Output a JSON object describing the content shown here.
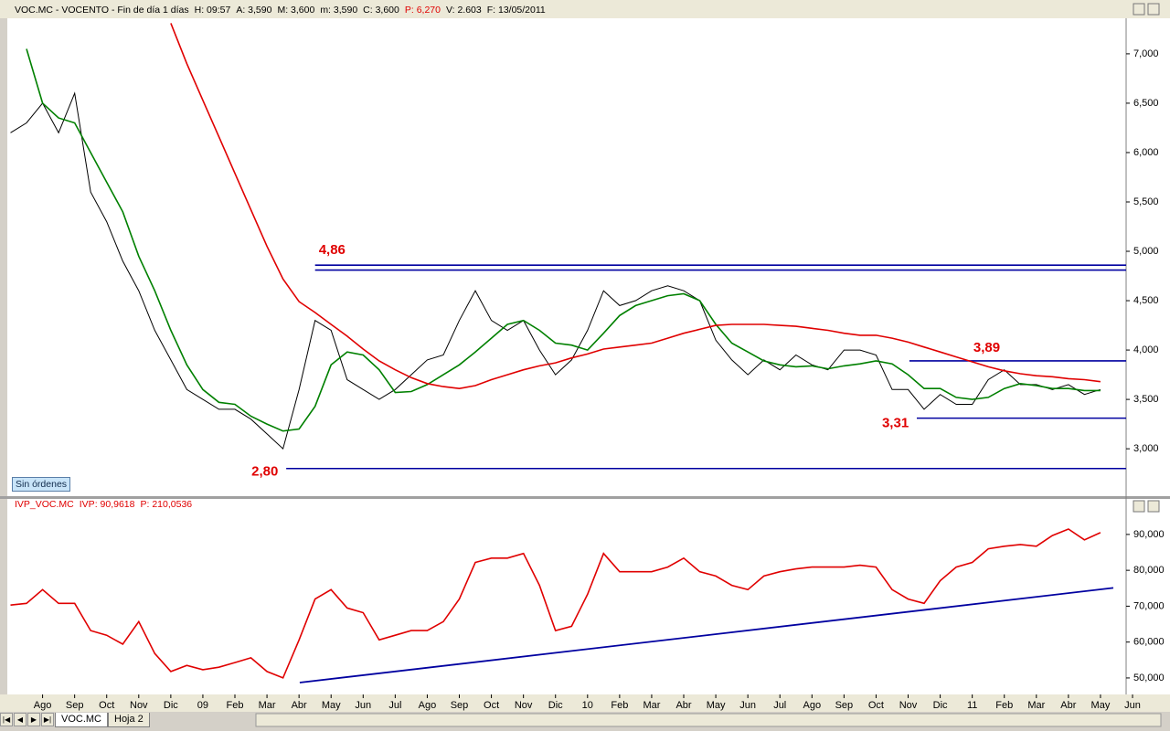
{
  "window": {
    "button": "Sin órdenes",
    "tabs": [
      "VOC.MC",
      "Hoja 2"
    ]
  },
  "chart_data": [
    {
      "type": "line",
      "header": [
        {
          "text": "VOC.MC - VOCENTO - Fin de día 1 días",
          "color": "#000000"
        },
        {
          "text": "H: 09:57",
          "color": "#000000"
        },
        {
          "text": "A: 3,590",
          "color": "#000000"
        },
        {
          "text": "M: 3,600",
          "color": "#000000"
        },
        {
          "text": "m: 3,590",
          "color": "#000000"
        },
        {
          "text": "C: 3,600",
          "color": "#000000"
        },
        {
          "text": "P: 6,270",
          "color": "#e00000"
        },
        {
          "text": "V: 2.603",
          "color": "#000000"
        },
        {
          "text": "F: 13/05/2011",
          "color": "#000000"
        }
      ],
      "x": [
        -1,
        -0.5,
        0,
        0.5,
        1,
        1.5,
        2,
        2.5,
        3,
        3.5,
        4,
        4.5,
        5,
        5.5,
        6,
        6.5,
        7,
        7.5,
        8,
        8.5,
        9,
        9.5,
        10,
        10.5,
        11,
        11.5,
        12,
        12.5,
        13,
        13.5,
        14,
        14.5,
        15,
        15.5,
        16,
        16.5,
        17,
        17.5,
        18,
        18.5,
        19,
        19.5,
        20,
        20.5,
        21,
        21.5,
        22,
        22.5,
        23,
        23.5,
        24,
        24.5,
        25,
        25.5,
        26,
        26.5,
        27,
        27.5,
        28,
        28.5,
        29,
        29.5,
        30,
        30.5,
        31,
        31.5,
        32,
        32.5,
        33
      ],
      "xlim": [
        -1.1,
        33.8
      ],
      "ylim": [
        2.52,
        7.36
      ],
      "yticks": [
        {
          "value": 3,
          "label": "3,000"
        },
        {
          "value": 3.5,
          "label": "3,500"
        },
        {
          "value": 4,
          "label": "4,000"
        },
        {
          "value": 4.5,
          "label": "4,500"
        },
        {
          "value": 5,
          "label": "5,000"
        },
        {
          "value": 5.5,
          "label": "5,500"
        },
        {
          "value": 6,
          "label": "6,000"
        },
        {
          "value": 6.5,
          "label": "6,500"
        },
        {
          "value": 7,
          "label": "7,000"
        }
      ],
      "series": [
        {
          "color": "#000000",
          "values": [
            6.2,
            6.3,
            6.5,
            6.2,
            6.6,
            5.6,
            5.3,
            4.9,
            4.6,
            4.2,
            3.9,
            3.6,
            3.5,
            3.4,
            3.4,
            3.3,
            3.15,
            3.0,
            3.6,
            4.3,
            4.2,
            3.7,
            3.6,
            3.5,
            3.6,
            3.75,
            3.9,
            3.95,
            4.3,
            4.6,
            4.3,
            4.2,
            4.3,
            4.0,
            3.75,
            3.9,
            4.2,
            4.6,
            4.45,
            4.5,
            4.6,
            4.65,
            4.6,
            4.5,
            4.1,
            3.9,
            3.75,
            3.9,
            3.8,
            3.95,
            3.85,
            3.8,
            4.0,
            4.0,
            3.95,
            3.6,
            3.6,
            3.4,
            3.55,
            3.45,
            3.45,
            3.7,
            3.8,
            3.65,
            3.65,
            3.6,
            3.65,
            3.55,
            3.6
          ]
        },
        {
          "color": "#008000",
          "values": [
            null,
            7.05,
            6.5,
            6.35,
            6.3,
            6.0,
            5.7,
            5.4,
            4.95,
            4.6,
            4.2,
            3.85,
            3.6,
            3.47,
            3.45,
            3.33,
            3.25,
            3.18,
            3.2,
            3.43,
            3.85,
            3.98,
            3.95,
            3.8,
            3.57,
            3.58,
            3.65,
            3.75,
            3.85,
            3.98,
            4.12,
            4.26,
            4.3,
            4.2,
            4.07,
            4.05,
            4.0,
            4.17,
            4.35,
            4.45,
            4.5,
            4.55,
            4.57,
            4.5,
            4.26,
            4.07,
            3.98,
            3.89,
            3.85,
            3.83,
            3.84,
            3.81,
            3.84,
            3.86,
            3.89,
            3.86,
            3.75,
            3.61,
            3.61,
            3.52,
            3.5,
            3.52,
            3.61,
            3.66,
            3.64,
            3.61,
            3.61,
            3.59,
            3.59
          ]
        },
        {
          "color": "#e00000",
          "values": [
            null,
            null,
            null,
            null,
            null,
            null,
            null,
            null,
            null,
            null,
            7.31,
            6.9,
            6.53,
            6.16,
            5.79,
            5.42,
            5.05,
            4.72,
            4.49,
            4.38,
            4.26,
            4.14,
            4.01,
            3.89,
            3.8,
            3.72,
            3.66,
            3.63,
            3.61,
            3.64,
            3.7,
            3.75,
            3.8,
            3.84,
            3.87,
            3.92,
            3.96,
            4.01,
            4.03,
            4.05,
            4.07,
            4.12,
            4.17,
            4.21,
            4.25,
            4.26,
            4.26,
            4.26,
            4.25,
            4.24,
            4.22,
            4.2,
            4.17,
            4.15,
            4.15,
            4.12,
            4.08,
            4.03,
            3.98,
            3.93,
            3.88,
            3.83,
            3.79,
            3.76,
            3.74,
            3.73,
            3.71,
            3.7,
            3.68
          ]
        }
      ],
      "levels_color": "#0000a0",
      "label_color": "#e00000",
      "levels": [
        {
          "value": 4.86,
          "label": "4,86",
          "x": 8.5
        },
        {
          "value": 4.81,
          "x": 8.5
        },
        {
          "value": 3.89,
          "label": "3,89",
          "x": 27.04
        },
        {
          "value": 3.31,
          "label": "3,31",
          "x": 27.27
        },
        {
          "value": 2.8,
          "label": "2,80",
          "x": 7.6
        }
      ]
    },
    {
      "type": "line",
      "header": [
        {
          "text": "IVP_VOC.MC",
          "color": "#e00000"
        },
        {
          "text": "IVP: 90,9618",
          "color": "#e00000"
        },
        {
          "text": "P: 210,0536",
          "color": "#e00000"
        }
      ],
      "x": [
        -1,
        -0.5,
        0,
        0.5,
        1,
        1.5,
        2,
        2.5,
        3,
        3.5,
        4,
        4.5,
        5,
        5.5,
        6,
        6.5,
        7,
        7.5,
        8,
        8.5,
        9,
        9.5,
        10,
        10.5,
        11,
        11.5,
        12,
        12.5,
        13,
        13.5,
        14,
        14.5,
        15,
        15.5,
        16,
        16.5,
        17,
        17.5,
        18,
        18.5,
        19,
        19.5,
        20,
        20.5,
        21,
        21.5,
        22,
        22.5,
        23,
        23.5,
        24,
        24.5,
        25,
        25.5,
        26,
        26.5,
        27,
        27.5,
        28,
        28.5,
        29,
        29.5,
        30,
        30.5,
        31,
        31.5,
        32,
        32.5,
        33
      ],
      "xlim": [
        -1.1,
        33.8
      ],
      "xticks": [
        {
          "value": 0,
          "label": "Ago"
        },
        {
          "value": 1,
          "label": "Sep"
        },
        {
          "value": 2,
          "label": "Oct"
        },
        {
          "value": 3,
          "label": "Nov"
        },
        {
          "value": 4,
          "label": "Dic"
        },
        {
          "value": 5,
          "label": "09"
        },
        {
          "value": 6,
          "label": "Feb"
        },
        {
          "value": 7,
          "label": "Mar"
        },
        {
          "value": 8,
          "label": "Abr"
        },
        {
          "value": 9,
          "label": "May"
        },
        {
          "value": 10,
          "label": "Jun"
        },
        {
          "value": 11,
          "label": "Jul"
        },
        {
          "value": 12,
          "label": "Ago"
        },
        {
          "value": 13,
          "label": "Sep"
        },
        {
          "value": 14,
          "label": "Oct"
        },
        {
          "value": 15,
          "label": "Nov"
        },
        {
          "value": 16,
          "label": "Dic"
        },
        {
          "value": 17,
          "label": "10"
        },
        {
          "value": 18,
          "label": "Feb"
        },
        {
          "value": 19,
          "label": "Mar"
        },
        {
          "value": 20,
          "label": "Abr"
        },
        {
          "value": 21,
          "label": "May"
        },
        {
          "value": 22,
          "label": "Jun"
        },
        {
          "value": 23,
          "label": "Jul"
        },
        {
          "value": 24,
          "label": "Ago"
        },
        {
          "value": 25,
          "label": "Sep"
        },
        {
          "value": 26,
          "label": "Oct"
        },
        {
          "value": 27,
          "label": "Nov"
        },
        {
          "value": 28,
          "label": "Dic"
        },
        {
          "value": 29,
          "label": "11"
        },
        {
          "value": 30,
          "label": "Feb"
        },
        {
          "value": 31,
          "label": "Mar"
        },
        {
          "value": 32,
          "label": "Abr"
        },
        {
          "value": 33,
          "label": "May"
        },
        {
          "value": 34,
          "label": "Jun"
        }
      ],
      "ylim": [
        45.4,
        99.9
      ],
      "yticks": [
        {
          "value": 50,
          "label": "50,000"
        },
        {
          "value": 60,
          "label": "60,000"
        },
        {
          "value": 70,
          "label": "70,000"
        },
        {
          "value": 80,
          "label": "80,000"
        },
        {
          "value": 90,
          "label": "90,000"
        }
      ],
      "series": [
        {
          "color": "#e00000",
          "values": [
            70.3,
            70.8,
            74.6,
            70.8,
            70.8,
            63.2,
            61.9,
            59.4,
            65.7,
            56.8,
            51.8,
            53.5,
            52.3,
            53,
            54.3,
            55.6,
            51.8,
            50,
            60.6,
            72,
            74.6,
            69.5,
            68.2,
            60.6,
            61.9,
            63.2,
            63.2,
            65.7,
            72,
            82.2,
            83.4,
            83.4,
            84.7,
            75.8,
            63.2,
            64.4,
            73.3,
            84.7,
            79.6,
            79.6,
            79.6,
            80.9,
            83.4,
            79.6,
            78.4,
            75.8,
            74.6,
            78.4,
            79.6,
            80.4,
            80.9,
            80.9,
            80.9,
            81.4,
            80.9,
            74.6,
            72,
            70.8,
            77.1,
            80.9,
            82.2,
            86,
            86.7,
            87.2,
            86.7,
            89.7,
            91.5,
            88.5,
            90.5
          ]
        }
      ],
      "trendline": {
        "color": "#0000a0",
        "x": [
          8.02,
          33.4
        ],
        "values": [
          48.7,
          75.1
        ]
      }
    }
  ]
}
